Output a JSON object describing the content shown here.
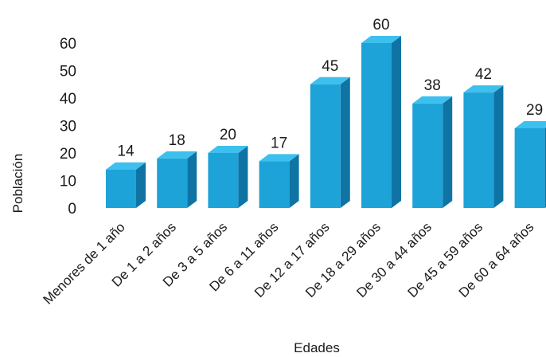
{
  "chart_data": {
    "type": "bar",
    "style": "3d-column",
    "categories": [
      "Menores de 1 año",
      "De 1 a 2 años",
      "De 3 a 5 años",
      "De 6 a 11 años",
      "De 12 a 17 años",
      "De 18 a 29 años",
      "De 30 a 44 años",
      "De 45 a 59 años",
      "De 60 a 64 años"
    ],
    "values": [
      14,
      18,
      20,
      17,
      45,
      60,
      38,
      42,
      29
    ],
    "data_labels": [
      "14",
      "18",
      "20",
      "17",
      "45",
      "60",
      "38",
      "42",
      "29"
    ],
    "y_ticks": [
      "0",
      "10",
      "20",
      "30",
      "40",
      "50",
      "60"
    ],
    "ylim": [
      0,
      60
    ],
    "xlabel": "Edades",
    "ylabel": "Población",
    "grid": false,
    "legend": "none",
    "colors": {
      "bar_front": "#1ea3d8",
      "bar_side": "#0f74a4",
      "bar_top": "#3dc0ee",
      "text": "#1b1b1b"
    }
  }
}
